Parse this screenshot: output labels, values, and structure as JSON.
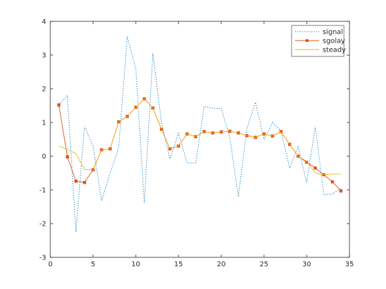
{
  "chart_data": {
    "type": "line",
    "title": "",
    "xlabel": "",
    "ylabel": "",
    "xlim": [
      0,
      35
    ],
    "ylim": [
      -3,
      4
    ],
    "x_ticks": [
      0,
      5,
      10,
      15,
      20,
      25,
      30,
      35
    ],
    "y_ticks": [
      -3,
      -2,
      -1,
      0,
      1,
      2,
      3,
      4
    ],
    "grid": false,
    "legend_position": "top-right",
    "series": [
      {
        "name": "signal",
        "color": "#0072bd",
        "style": "dotted",
        "marker": "none",
        "x": [
          1,
          2,
          3,
          4,
          5,
          6,
          7,
          8,
          9,
          10,
          11,
          12,
          13,
          14,
          15,
          16,
          17,
          18,
          19,
          20,
          21,
          22,
          23,
          24,
          25,
          26,
          27,
          28,
          29,
          30,
          31,
          32,
          33,
          34
        ],
        "values": [
          1.52,
          1.8,
          -2.25,
          0.88,
          0.3,
          -1.32,
          -0.5,
          0.25,
          3.55,
          2.6,
          -1.38,
          3.05,
          1.0,
          -0.08,
          0.68,
          -0.2,
          -0.2,
          1.48,
          1.42,
          1.42,
          0.55,
          -1.2,
          0.82,
          1.6,
          0.5,
          1.0,
          0.75,
          -0.35,
          0.28,
          -0.78,
          0.88,
          -1.15,
          -1.12,
          -0.95
        ]
      },
      {
        "name": "sgolay",
        "color": "#d95319",
        "style": "solid",
        "marker": "square",
        "x": [
          1,
          2,
          3,
          4,
          5,
          6,
          7,
          8,
          9,
          10,
          11,
          12,
          13,
          14,
          15,
          16,
          17,
          18,
          19,
          20,
          21,
          22,
          23,
          24,
          25,
          26,
          27,
          28,
          29,
          30,
          31,
          32,
          33,
          34
        ],
        "values": [
          1.52,
          -0.02,
          -0.74,
          -0.78,
          -0.4,
          0.19,
          0.22,
          1.02,
          1.18,
          1.45,
          1.7,
          1.43,
          0.8,
          0.22,
          0.3,
          0.66,
          0.58,
          0.73,
          0.69,
          0.72,
          0.74,
          0.69,
          0.61,
          0.56,
          0.66,
          0.6,
          0.73,
          0.35,
          0.0,
          -0.18,
          -0.35,
          -0.55,
          -0.76,
          -1.03
        ]
      },
      {
        "name": "steady",
        "color": "#edb120",
        "style": "solid",
        "marker": "none",
        "x": [
          1,
          2,
          3,
          4,
          5,
          6,
          7,
          8,
          9,
          10,
          11,
          12,
          13,
          14,
          15,
          16,
          17,
          18,
          19,
          20,
          21,
          22,
          23,
          24,
          25,
          26,
          27,
          28,
          29,
          30,
          31,
          32,
          33,
          34
        ],
        "values": [
          0.3,
          0.2,
          0.08,
          -0.4,
          -0.4,
          0.19,
          0.22,
          1.02,
          1.18,
          1.45,
          1.7,
          1.43,
          0.8,
          0.22,
          0.3,
          0.66,
          0.58,
          0.73,
          0.69,
          0.72,
          0.74,
          0.69,
          0.61,
          0.56,
          0.66,
          0.6,
          0.73,
          0.35,
          0.0,
          -0.15,
          -0.5,
          -0.55,
          -0.53,
          -0.53
        ]
      }
    ]
  }
}
